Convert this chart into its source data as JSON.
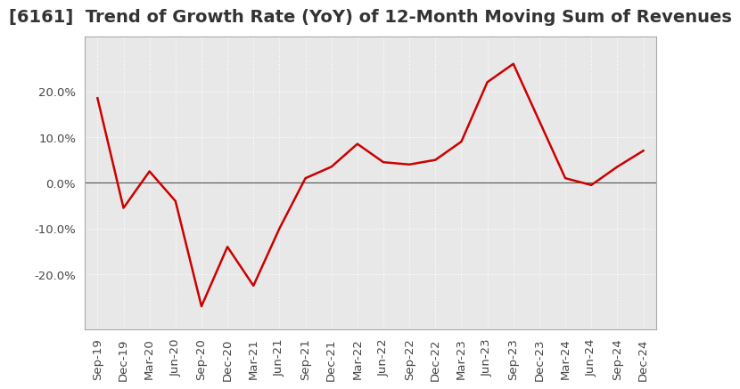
{
  "title": "[6161]  Trend of Growth Rate (YoY) of 12-Month Moving Sum of Revenues",
  "x_labels": [
    "Sep-19",
    "Dec-19",
    "Mar-20",
    "Jun-20",
    "Sep-20",
    "Dec-20",
    "Mar-21",
    "Jun-21",
    "Sep-21",
    "Dec-21",
    "Mar-22",
    "Jun-22",
    "Sep-22",
    "Dec-22",
    "Mar-23",
    "Jun-23",
    "Sep-23",
    "Dec-23",
    "Mar-24",
    "Jun-24",
    "Sep-24",
    "Dec-24"
  ],
  "y_values": [
    18.5,
    -5.5,
    2.5,
    -4.0,
    -27.0,
    -14.0,
    -22.5,
    -10.0,
    1.0,
    3.5,
    8.5,
    4.5,
    4.0,
    5.0,
    9.0,
    22.0,
    26.0,
    13.5,
    1.0,
    -0.5,
    3.5,
    7.0
  ],
  "line_color": "#cc0000",
  "ylim": [
    -32,
    32
  ],
  "yticks": [
    -20.0,
    -10.0,
    0.0,
    10.0,
    20.0
  ],
  "plot_bg_color": "#e8e8e8",
  "outer_bg_color": "#ffffff",
  "grid_color": "#ffffff",
  "zero_line_color": "#555555",
  "title_fontsize": 14,
  "tick_fontsize": 9.5,
  "title_color": "#333333"
}
